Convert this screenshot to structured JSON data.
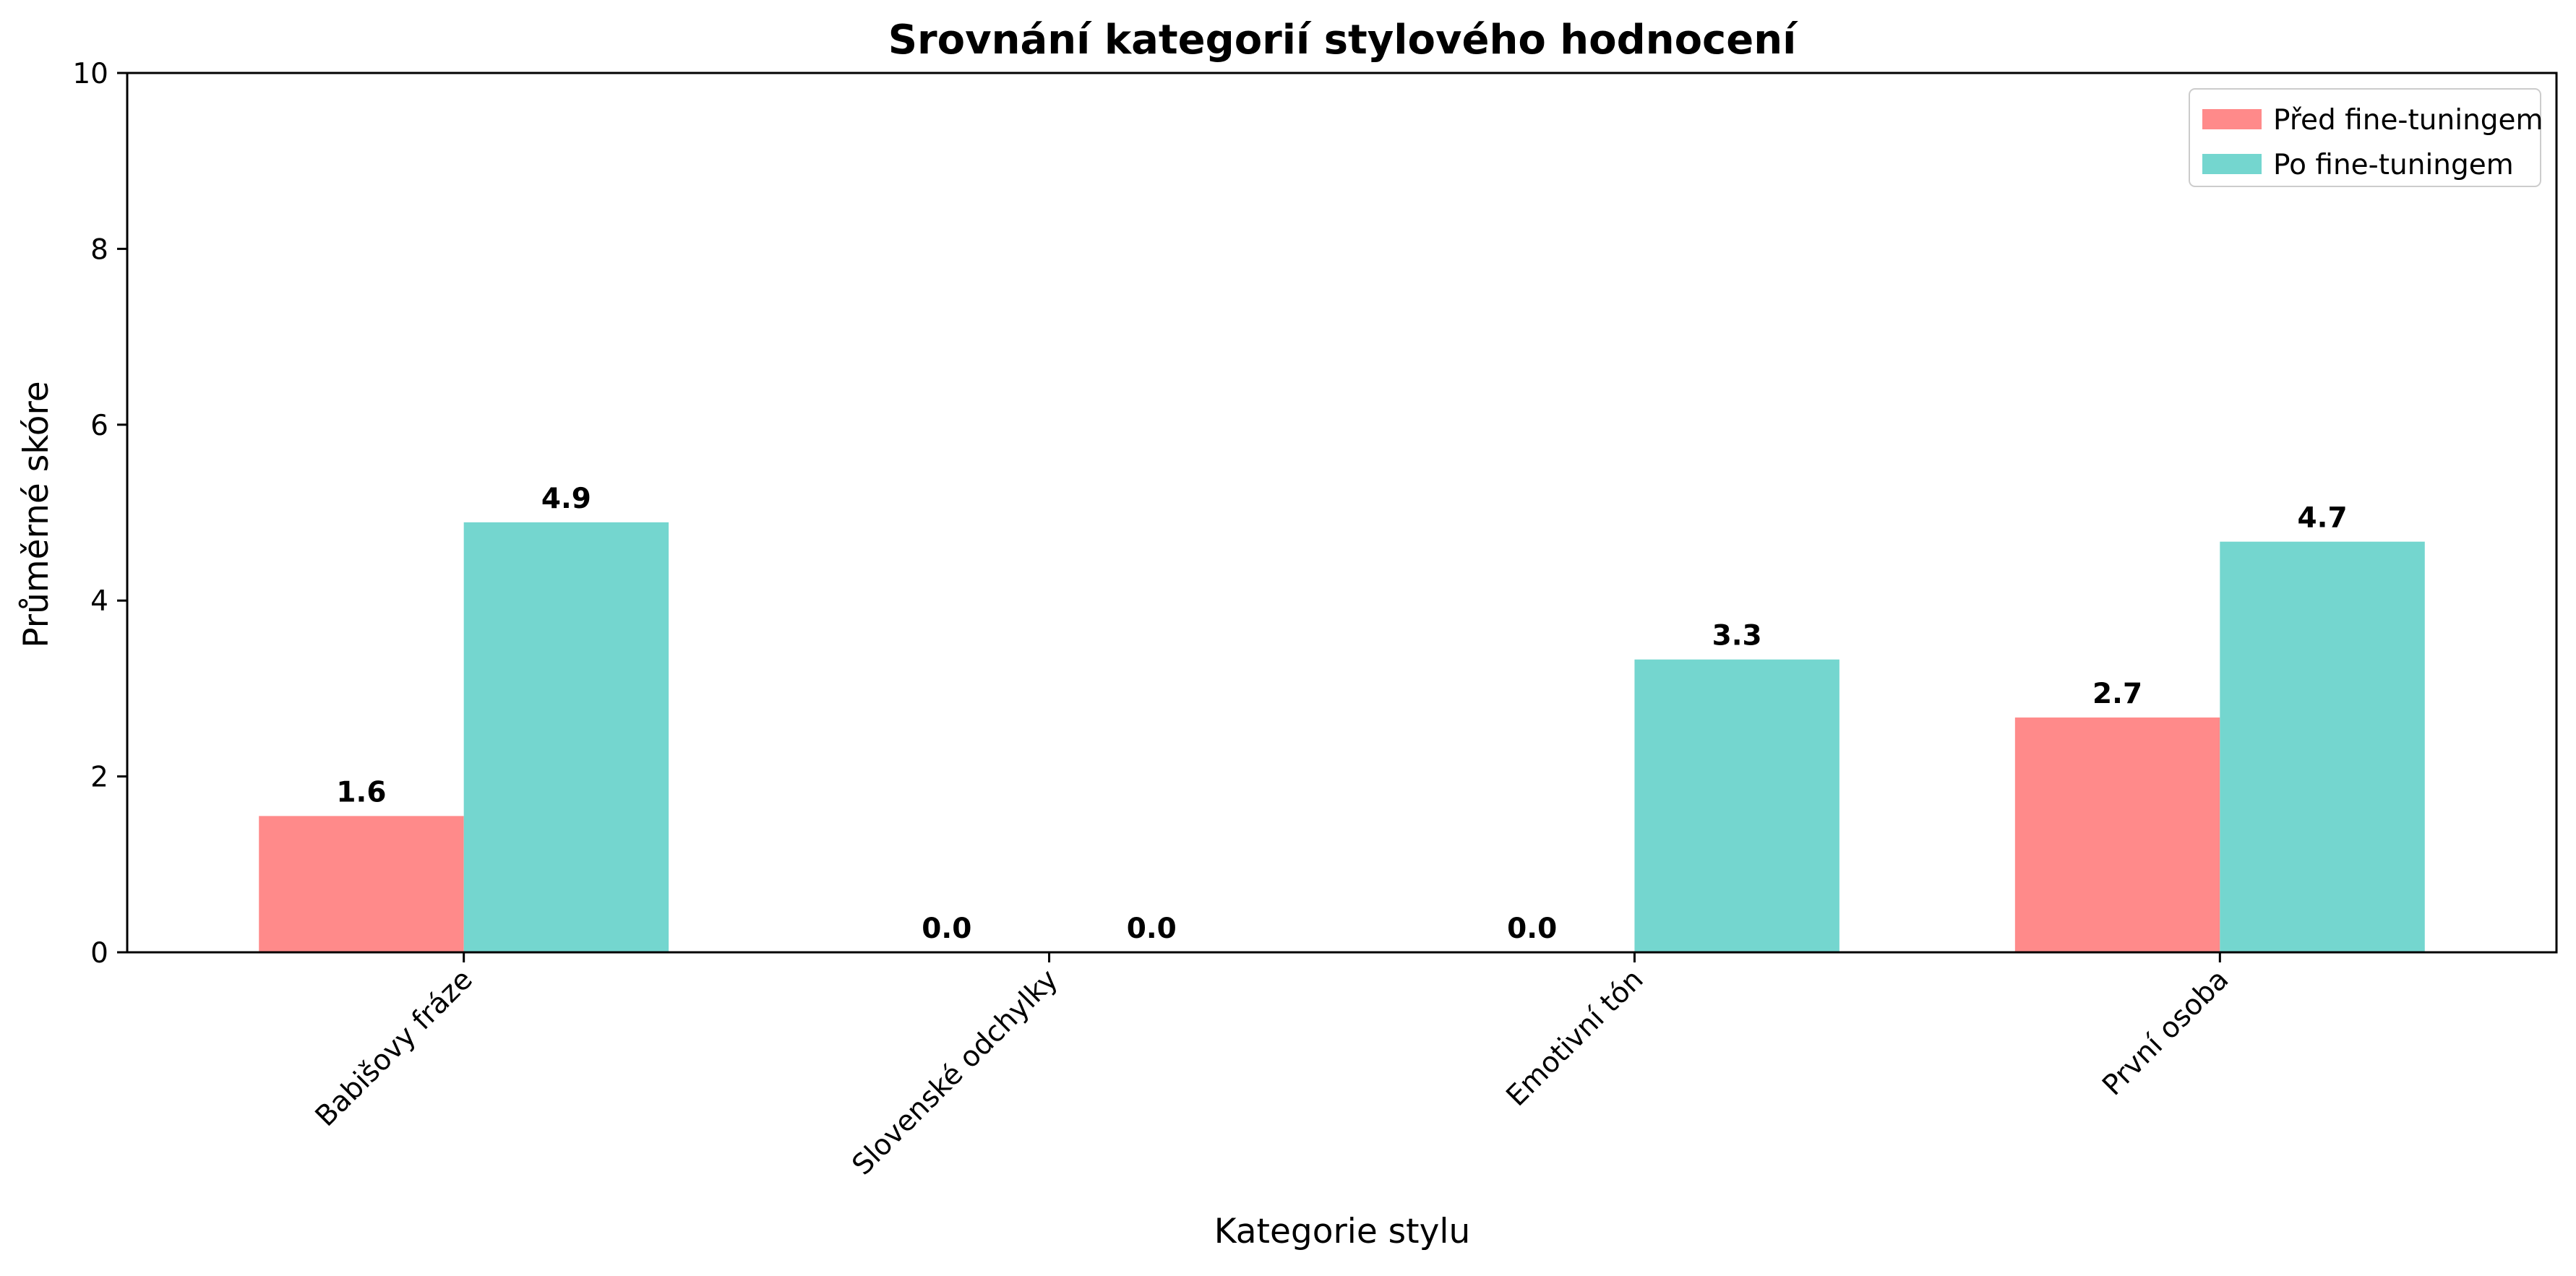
{
  "chart_data": {
    "type": "bar",
    "title": "Srovnání kategorií stylového hodnocení",
    "xlabel": "Kategorie stylu",
    "ylabel": "Průměrné skóre",
    "categories": [
      "Babišovy fráze",
      "Slovenské odchylky",
      "Emotivní tón",
      "První osoba"
    ],
    "series": [
      {
        "name": "Před fine-tuningem",
        "color": "#ff8a8a",
        "values": [
          1.55,
          0.0,
          0.0,
          2.67
        ],
        "labels": [
          "1.6",
          "0.0",
          "0.0",
          "2.7"
        ]
      },
      {
        "name": "Po fine-tuningem",
        "color": "#74d6cf",
        "values": [
          4.89,
          0.0,
          3.33,
          4.67
        ],
        "labels": [
          "4.9",
          "0.0",
          "3.3",
          "4.7"
        ]
      }
    ],
    "ylim": [
      0,
      10
    ],
    "yticks": [
      "0",
      "2",
      "4",
      "6",
      "8",
      "10"
    ],
    "grid": false,
    "legend_position": "top-right"
  }
}
